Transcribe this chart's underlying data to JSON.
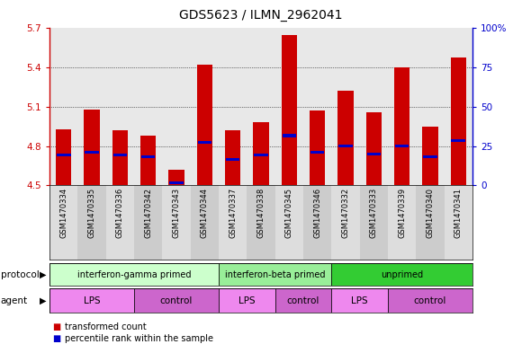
{
  "title": "GDS5623 / ILMN_2962041",
  "samples": [
    "GSM1470334",
    "GSM1470335",
    "GSM1470336",
    "GSM1470342",
    "GSM1470343",
    "GSM1470344",
    "GSM1470337",
    "GSM1470338",
    "GSM1470345",
    "GSM1470346",
    "GSM1470332",
    "GSM1470333",
    "GSM1470339",
    "GSM1470340",
    "GSM1470341"
  ],
  "bar_heights": [
    4.93,
    5.08,
    4.92,
    4.88,
    4.62,
    5.42,
    4.92,
    4.98,
    5.65,
    5.07,
    5.22,
    5.06,
    5.4,
    4.95,
    5.48
  ],
  "blue_positions": [
    4.73,
    4.75,
    4.73,
    4.72,
    4.52,
    4.83,
    4.7,
    4.73,
    4.88,
    4.75,
    4.8,
    4.74,
    4.8,
    4.72,
    4.84
  ],
  "ymin": 4.5,
  "ymax": 5.7,
  "yticks": [
    4.5,
    4.8,
    5.1,
    5.4,
    5.7
  ],
  "ytick_labels": [
    "4.5",
    "4.8",
    "5.1",
    "5.4",
    "5.7"
  ],
  "right_yticks": [
    0,
    25,
    50,
    75,
    100
  ],
  "right_ytick_labels": [
    "0",
    "25",
    "50",
    "75",
    "100%"
  ],
  "bar_color": "#cc0000",
  "blue_color": "#0000cc",
  "plot_bg": "#e8e8e8",
  "label_bg": "#d8d8d8",
  "protocol_groups": [
    {
      "label": "interferon-gamma primed",
      "start": 0,
      "end": 5,
      "color": "#ccffcc"
    },
    {
      "label": "interferon-beta primed",
      "start": 6,
      "end": 9,
      "color": "#99ee99"
    },
    {
      "label": "unprimed",
      "start": 10,
      "end": 14,
      "color": "#33cc33"
    }
  ],
  "agent_groups": [
    {
      "label": "LPS",
      "start": 0,
      "end": 2,
      "color": "#ee88ee"
    },
    {
      "label": "control",
      "start": 3,
      "end": 5,
      "color": "#cc66cc"
    },
    {
      "label": "LPS",
      "start": 6,
      "end": 7,
      "color": "#ee88ee"
    },
    {
      "label": "control",
      "start": 8,
      "end": 9,
      "color": "#cc66cc"
    },
    {
      "label": "LPS",
      "start": 10,
      "end": 11,
      "color": "#ee88ee"
    },
    {
      "label": "control",
      "start": 12,
      "end": 14,
      "color": "#cc66cc"
    }
  ],
  "axis_color_left": "#cc0000",
  "axis_color_right": "#0000cc",
  "bar_width": 0.55
}
